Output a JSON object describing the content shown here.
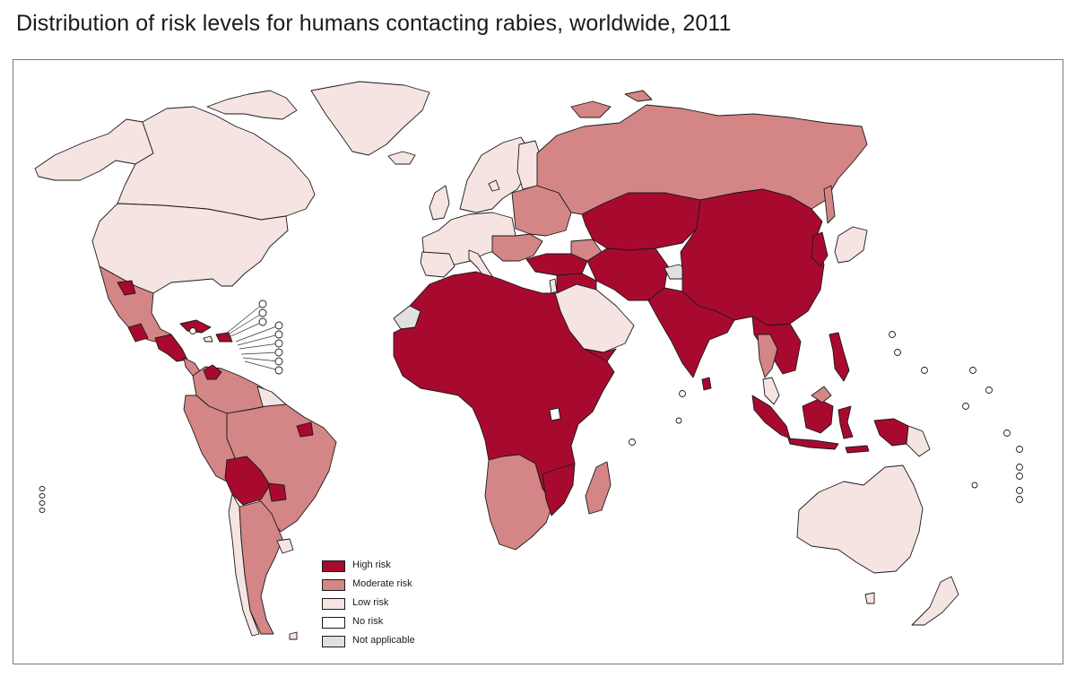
{
  "title": "Distribution of risk levels for humans contacting rabies, worldwide, 2011",
  "colors": {
    "high": "#a80a2f",
    "moderate": "#d48585",
    "low": "#f5e4e1",
    "none": "#ffffff",
    "na": "#e0e0e0",
    "border": "#1a1a1a",
    "frame": "#7a7a7a"
  },
  "legend": [
    {
      "label": "High risk",
      "color_key": "high"
    },
    {
      "label": "Moderate risk",
      "color_key": "moderate"
    },
    {
      "label": "Low risk",
      "color_key": "low"
    },
    {
      "label": "No risk",
      "color_key": "none"
    },
    {
      "label": "Not applicable",
      "color_key": "na"
    }
  ]
}
